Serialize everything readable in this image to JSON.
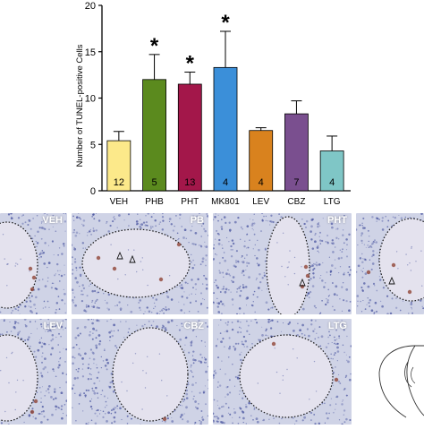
{
  "chart_data": {
    "type": "bar",
    "ylabel": "Number of TUNEL-positive Cells",
    "ylim": [
      0,
      20
    ],
    "yticks": [
      0,
      5,
      10,
      15,
      20
    ],
    "categories": [
      "VEH",
      "PHB",
      "PHT",
      "MK801",
      "LEV",
      "CBZ",
      "LTG"
    ],
    "values": [
      5.4,
      12.0,
      11.5,
      13.3,
      6.5,
      8.3,
      4.3
    ],
    "errors": [
      1.0,
      2.7,
      1.3,
      3.9,
      0.3,
      1.4,
      1.6
    ],
    "n_labels": [
      "12",
      "5",
      "13",
      "4",
      "4",
      "7",
      "4"
    ],
    "significance": [
      "",
      "*",
      "*",
      "*",
      "",
      "",
      ""
    ],
    "colors": [
      "#fce98a",
      "#5b8a1e",
      "#a3174a",
      "#3b8fd9",
      "#d9821e",
      "#7a4f8f",
      "#7fc6c6"
    ]
  },
  "panels": {
    "row1": [
      "VEH",
      "PB",
      "PHT",
      ""
    ],
    "row2": [
      "LEV",
      "CBZ",
      "LTG"
    ]
  },
  "colors": {
    "tissue": "#cfd3e6",
    "tissue_dark": "#9aa3cc",
    "nuclei": "#4a55a0",
    "apoptotic": "#8b3a2a"
  }
}
